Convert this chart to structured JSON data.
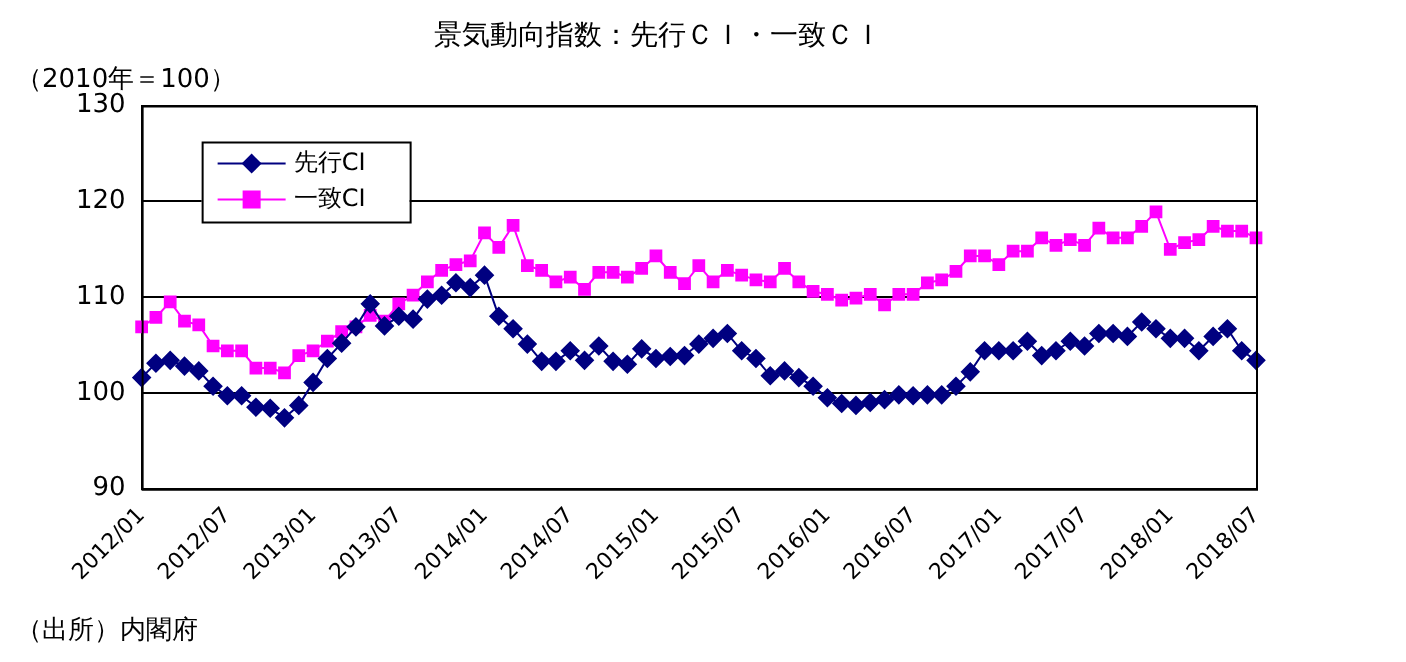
{
  "chart_data": {
    "type": "line",
    "title": "景気動向指数：先行ＣＩ・一致ＣＩ",
    "ylabel": "（2010年＝100）",
    "annotations": [
      "（出所）内閣府"
    ],
    "categories": [
      "2012/01",
      null,
      null,
      null,
      null,
      null,
      "2012/07",
      null,
      null,
      null,
      null,
      null,
      "2013/01",
      null,
      null,
      null,
      null,
      null,
      "2013/07",
      null,
      null,
      null,
      null,
      null,
      "2014/01",
      null,
      null,
      null,
      null,
      null,
      "2014/07",
      null,
      null,
      null,
      null,
      null,
      "2015/01",
      null,
      null,
      null,
      null,
      null,
      "2015/07",
      null,
      null,
      null,
      null,
      null,
      "2016/01",
      null,
      null,
      null,
      null,
      null,
      "2016/07",
      null,
      null,
      null,
      null,
      null,
      "2017/01",
      null,
      null,
      null,
      null,
      null,
      "2017/07",
      null,
      null,
      null,
      null,
      null,
      "2018/01",
      null,
      null,
      null,
      null,
      null,
      "2018/07"
    ],
    "series": [
      {
        "name": "先行CI",
        "color": "#000080",
        "marker": "diamond",
        "values": [
          101.6,
          103.1,
          103.4,
          102.8,
          102.3,
          100.7,
          99.7,
          99.7,
          98.5,
          98.4,
          97.4,
          98.7,
          101.1,
          103.6,
          105.2,
          106.9,
          109.3,
          107.0,
          108.0,
          107.7,
          109.8,
          110.2,
          111.5,
          111.0,
          112.3,
          108.0,
          106.7,
          105.1,
          103.3,
          103.3,
          104.4,
          103.4,
          104.9,
          103.3,
          103.0,
          104.6,
          103.6,
          103.8,
          103.9,
          105.1,
          105.7,
          106.2,
          104.4,
          103.6,
          101.8,
          102.3,
          101.6,
          100.7,
          99.5,
          98.9,
          98.7,
          99.0,
          99.3,
          99.8,
          99.7,
          99.8,
          99.8,
          100.7,
          102.2,
          104.4,
          104.4,
          104.4,
          105.4,
          103.9,
          104.4,
          105.4,
          104.9,
          106.2,
          106.2,
          105.9,
          107.4,
          106.7,
          105.7,
          105.7,
          104.4,
          105.9,
          106.7,
          104.4,
          103.4
        ]
      },
      {
        "name": "一致CI",
        "color": "#ff00ff",
        "marker": "square",
        "values": [
          106.9,
          107.9,
          109.5,
          107.5,
          107.1,
          104.9,
          104.4,
          104.4,
          102.6,
          102.6,
          102.1,
          103.9,
          104.4,
          105.4,
          106.4,
          106.9,
          108.1,
          107.5,
          109.3,
          110.2,
          111.6,
          112.8,
          113.4,
          113.8,
          116.7,
          115.2,
          117.5,
          113.3,
          112.8,
          111.6,
          112.1,
          110.8,
          112.6,
          112.6,
          112.1,
          113.0,
          114.3,
          112.6,
          111.4,
          113.3,
          111.6,
          112.8,
          112.3,
          111.8,
          111.6,
          113.0,
          111.6,
          110.6,
          110.3,
          109.7,
          109.9,
          110.3,
          109.2,
          110.3,
          110.3,
          111.5,
          111.8,
          112.7,
          114.3,
          114.3,
          113.4,
          114.8,
          114.8,
          116.2,
          115.4,
          116.0,
          115.4,
          117.2,
          116.2,
          116.2,
          117.4,
          118.9,
          115.0,
          115.7,
          116.0,
          117.4,
          116.9,
          116.9,
          116.2
        ]
      }
    ],
    "ylim": [
      90,
      130
    ],
    "yticks": [
      90,
      100,
      110,
      120,
      130
    ],
    "grid": "y",
    "legend": "top left"
  }
}
